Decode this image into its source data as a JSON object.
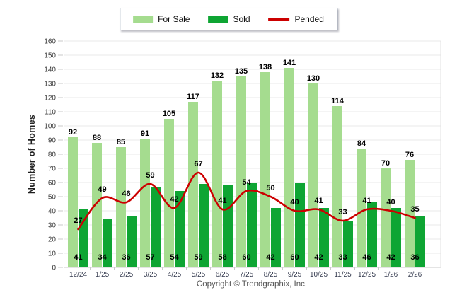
{
  "legend": {
    "items": [
      {
        "label": "For Sale",
        "swatch": "bar",
        "color": "#A5DC8F"
      },
      {
        "label": "Sold",
        "swatch": "bar",
        "color": "#0EA533"
      },
      {
        "label": "Pended",
        "swatch": "line",
        "color": "#CC0000"
      }
    ]
  },
  "footer": {
    "copyright": "Copyright © Trendgraphix, Inc."
  },
  "chart_data": {
    "type": "bar",
    "title": "",
    "xlabel": "",
    "ylabel": "Number of Homes",
    "ylim": [
      0,
      160
    ],
    "ytick_step": 10,
    "grid": true,
    "legend_position": "top",
    "categories": [
      "12/24",
      "1/25",
      "2/25",
      "3/25",
      "4/25",
      "5/25",
      "6/25",
      "7/25",
      "8/25",
      "9/25",
      "10/25",
      "11/25",
      "12/25",
      "1/26",
      "2/26"
    ],
    "series": [
      {
        "name": "For Sale",
        "type": "bar",
        "color": "#A5DC8F",
        "values": [
          92,
          88,
          85,
          91,
          105,
          117,
          132,
          135,
          138,
          141,
          130,
          114,
          84,
          70,
          76
        ]
      },
      {
        "name": "Sold",
        "type": "bar",
        "color": "#0EA533",
        "values": [
          41,
          34,
          36,
          57,
          54,
          59,
          58,
          60,
          42,
          60,
          42,
          33,
          46,
          42,
          36
        ]
      },
      {
        "name": "Pended",
        "type": "line",
        "color": "#CC0000",
        "values": [
          27,
          49,
          46,
          59,
          42,
          67,
          41,
          54,
          50,
          40,
          41,
          33,
          41,
          40,
          35
        ]
      }
    ]
  }
}
